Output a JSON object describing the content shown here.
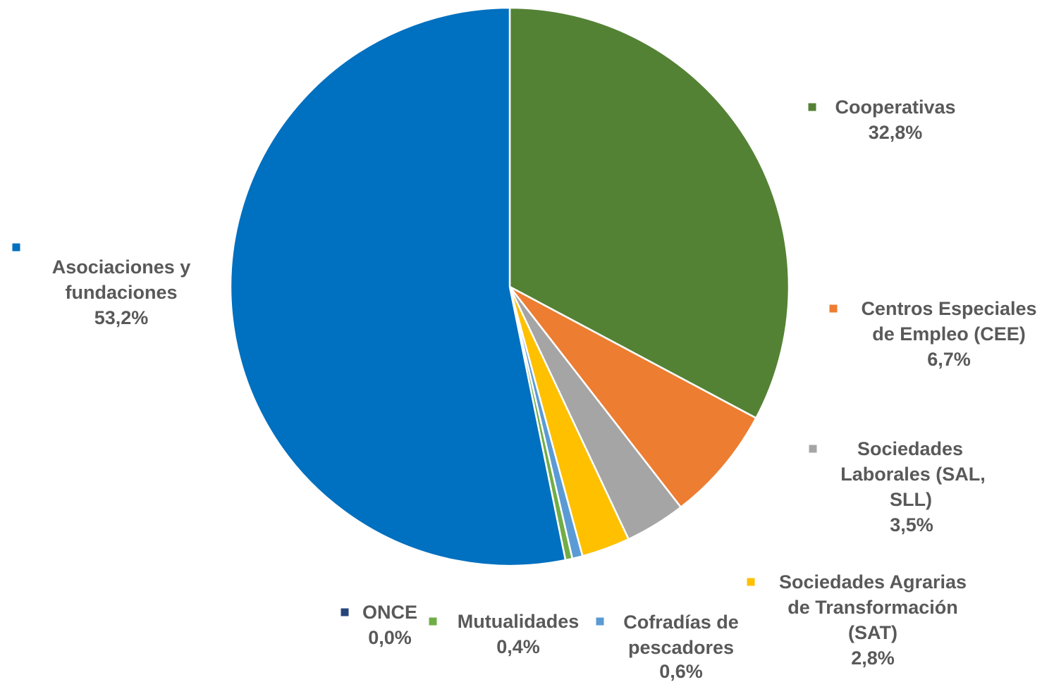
{
  "chart_data": {
    "type": "pie",
    "title": "",
    "start_angle_deg": 0,
    "direction": "clockwise",
    "slices": [
      {
        "key": "cooperativas",
        "lines": [
          "Cooperativas"
        ],
        "value_label": "32,8%",
        "value": 32.8,
        "color": "#548235"
      },
      {
        "key": "cee",
        "lines": [
          "Centros Especiales",
          "de Empleo (CEE)"
        ],
        "value_label": "6,7%",
        "value": 6.7,
        "color": "#ED7D31"
      },
      {
        "key": "sal",
        "lines": [
          "Sociedades",
          "Laborales (SAL,",
          "SLL)"
        ],
        "value_label": "3,5%",
        "value": 3.5,
        "color": "#A5A5A5"
      },
      {
        "key": "sat",
        "lines": [
          "Sociedades Agrarias",
          "de Transformación",
          "(SAT)"
        ],
        "value_label": "2,8%",
        "value": 2.8,
        "color": "#FFC000"
      },
      {
        "key": "cofradias",
        "lines": [
          "Cofradías de",
          "pescadores"
        ],
        "value_label": "0,6%",
        "value": 0.6,
        "color": "#5B9BD5"
      },
      {
        "key": "mutualidades",
        "lines": [
          "Mutualidades"
        ],
        "value_label": "0,4%",
        "value": 0.4,
        "color": "#70AD47"
      },
      {
        "key": "once",
        "lines": [
          "ONCE"
        ],
        "value_label": "0,0%",
        "value": 0.0,
        "color": "#264478"
      },
      {
        "key": "asociaciones",
        "lines": [
          "Asociaciones y",
          "fundaciones"
        ],
        "value_label": "53,2%",
        "value": 53.2,
        "color": "#0070C0"
      }
    ]
  }
}
